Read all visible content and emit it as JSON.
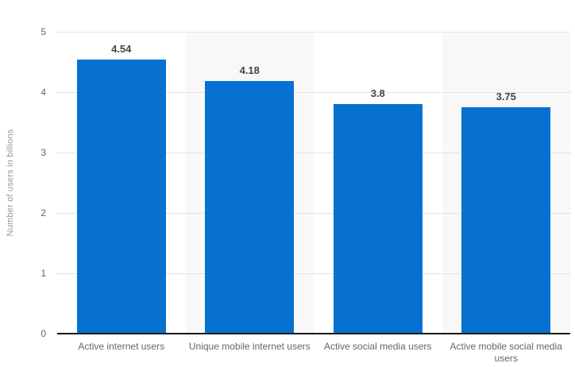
{
  "chart_data": {
    "type": "bar",
    "title": "",
    "ylabel": "Number of users in billions",
    "xlabel": "",
    "categories": [
      "Active internet users",
      "Unique mobile internet users",
      "Active social media users",
      "Active mobile social media users"
    ],
    "values": [
      4.54,
      4.18,
      3.8,
      3.75
    ],
    "value_labels": [
      "4.54",
      "4.18",
      "3.8",
      "3.75"
    ],
    "ylim": [
      0,
      5
    ],
    "yticks": [
      "0",
      "1",
      "2",
      "3",
      "4",
      "5"
    ],
    "grid": "horizontal dotted gridlines, on",
    "legend": "none",
    "plot_bands_on_columns": [
      1,
      3
    ],
    "colors": {
      "bar": "#0671d0",
      "plot_band": "#f8f8f8",
      "gridline": "#cccccc",
      "axis_line": "#1a1a1a",
      "tick_label": "#666666",
      "category_label": "#666666",
      "value_label": "#454545",
      "axis_title": "#999999",
      "background": "#ffffff"
    }
  }
}
